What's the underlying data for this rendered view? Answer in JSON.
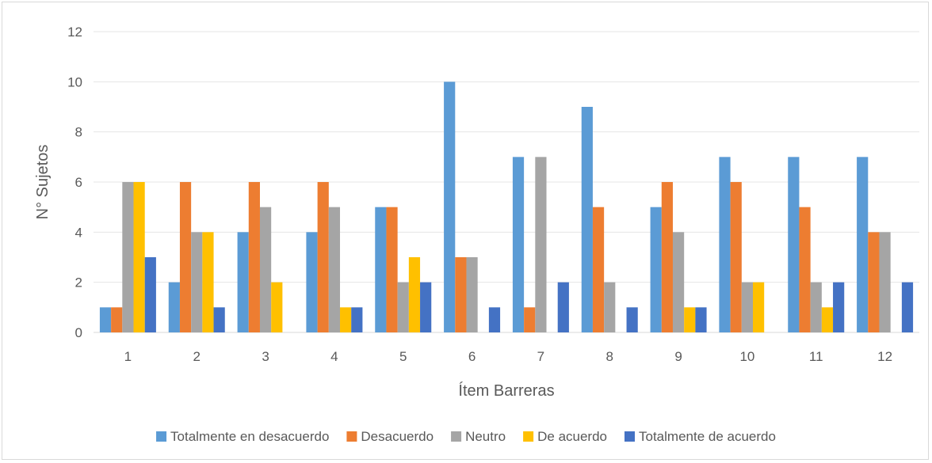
{
  "chart_data": {
    "type": "bar",
    "title": "",
    "xlabel": "Ítem Barreras",
    "ylabel": "N° Sujetos",
    "ylim": [
      0,
      12
    ],
    "yticks": [
      0,
      2,
      4,
      6,
      8,
      10,
      12
    ],
    "categories": [
      "1",
      "2",
      "3",
      "4",
      "5",
      "6",
      "7",
      "8",
      "9",
      "10",
      "11",
      "12"
    ],
    "grid": true,
    "legend_position": "bottom",
    "series": [
      {
        "name": "Totalmente en desacuerdo",
        "color": "#5b9bd5",
        "values": [
          1,
          2,
          4,
          4,
          5,
          10,
          7,
          9,
          5,
          7,
          7,
          7
        ]
      },
      {
        "name": "Desacuerdo",
        "color": "#ed7d31",
        "values": [
          1,
          6,
          6,
          6,
          5,
          3,
          1,
          5,
          6,
          6,
          5,
          4
        ]
      },
      {
        "name": "Neutro",
        "color": "#a5a5a5",
        "values": [
          6,
          4,
          5,
          5,
          2,
          3,
          7,
          2,
          4,
          2,
          2,
          4
        ]
      },
      {
        "name": "De acuerdo",
        "color": "#ffc000",
        "values": [
          6,
          4,
          2,
          1,
          3,
          0,
          0,
          0,
          1,
          2,
          1,
          0
        ]
      },
      {
        "name": "Totalmente de acuerdo",
        "color": "#4472c4",
        "values": [
          3,
          1,
          0,
          1,
          2,
          1,
          2,
          1,
          1,
          0,
          2,
          2
        ]
      }
    ]
  }
}
